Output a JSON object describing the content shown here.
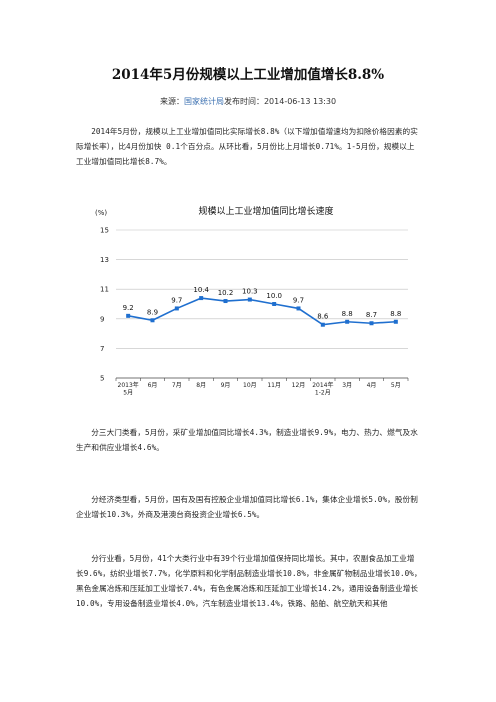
{
  "article": {
    "title": "2014年5月份规模以上工业增加值增长8.8%",
    "source_prefix": "来源：",
    "source_name": "国家统计局",
    "publish_label": "发布时间：",
    "publish_time": "2014-06-13  13:30",
    "paragraphs": [
      "2014年5月份，规模以上工业增加值同比实际增长8.8%（以下增加值增速均为扣除价格因素的实际增长率），比4月份加快 0.1个百分点。从环比看，5月份比上月增长0.71%。1-5月份，规模以上工业增加值同比增长8.7%。",
      "分三大门类看，5月份，采矿业增加值同比增长4.3%，制造业增长9.9%，电力、热力、燃气及水生产和供应业增长4.6%。",
      "分经济类型看，5月份，国有及国有控股企业增加值同比增长6.1%，集体企业增长5.0%，股份制企业增长10.3%，外商及港澳台商投资企业增长6.5%。",
      "分行业看，5月份，41个大类行业中有39个行业增加值保持同比增长。其中，农副食品加工业增长9.6%，纺织业增长7.7%，化学原料和化学制品制造业增长10.8%，非金属矿物制品业增长10.0%，黑色金属冶炼和压延加工业增长7.4%，有色金属冶炼和压延加工业增长14.2%，通用设备制造业增长10.0%，专用设备制造业增长4.0%，汽车制造业增长13.4%，铁路、船舶、航空航天和其他"
    ]
  },
  "chart_data": {
    "type": "line",
    "title": "规模以上工业增加值同比增长速度",
    "ylabel": "(%)",
    "xlabel": "",
    "categories": [
      [
        "2013年",
        "5月"
      ],
      [
        "6月"
      ],
      [
        "7月"
      ],
      [
        "8月"
      ],
      [
        "9月"
      ],
      [
        "10月"
      ],
      [
        "11月"
      ],
      [
        "12月"
      ],
      [
        "2014年",
        "1-2月"
      ],
      [
        "3月"
      ],
      [
        "4月"
      ],
      [
        "5月"
      ]
    ],
    "series": [
      {
        "values": [
          9.2,
          8.9,
          9.7,
          10.4,
          10.2,
          10.3,
          10.0,
          9.7,
          8.6,
          8.8,
          8.7,
          8.8
        ]
      }
    ],
    "data_labels": [
      "9.2",
      "8.9",
      "9.7",
      "10.4",
      "10.2",
      "10.3",
      "10.0",
      "9.7",
      "8.6",
      "8.8",
      "8.7",
      "8.8"
    ],
    "ylim": [
      5,
      15
    ],
    "yticks": [
      "5",
      "7",
      "9",
      "11",
      "13",
      "15"
    ],
    "ytick_values": [
      5,
      7,
      9,
      11,
      13,
      15
    ],
    "grid": true,
    "line_color": "#1f6fcf",
    "grid_color": "#bfbfbf"
  }
}
